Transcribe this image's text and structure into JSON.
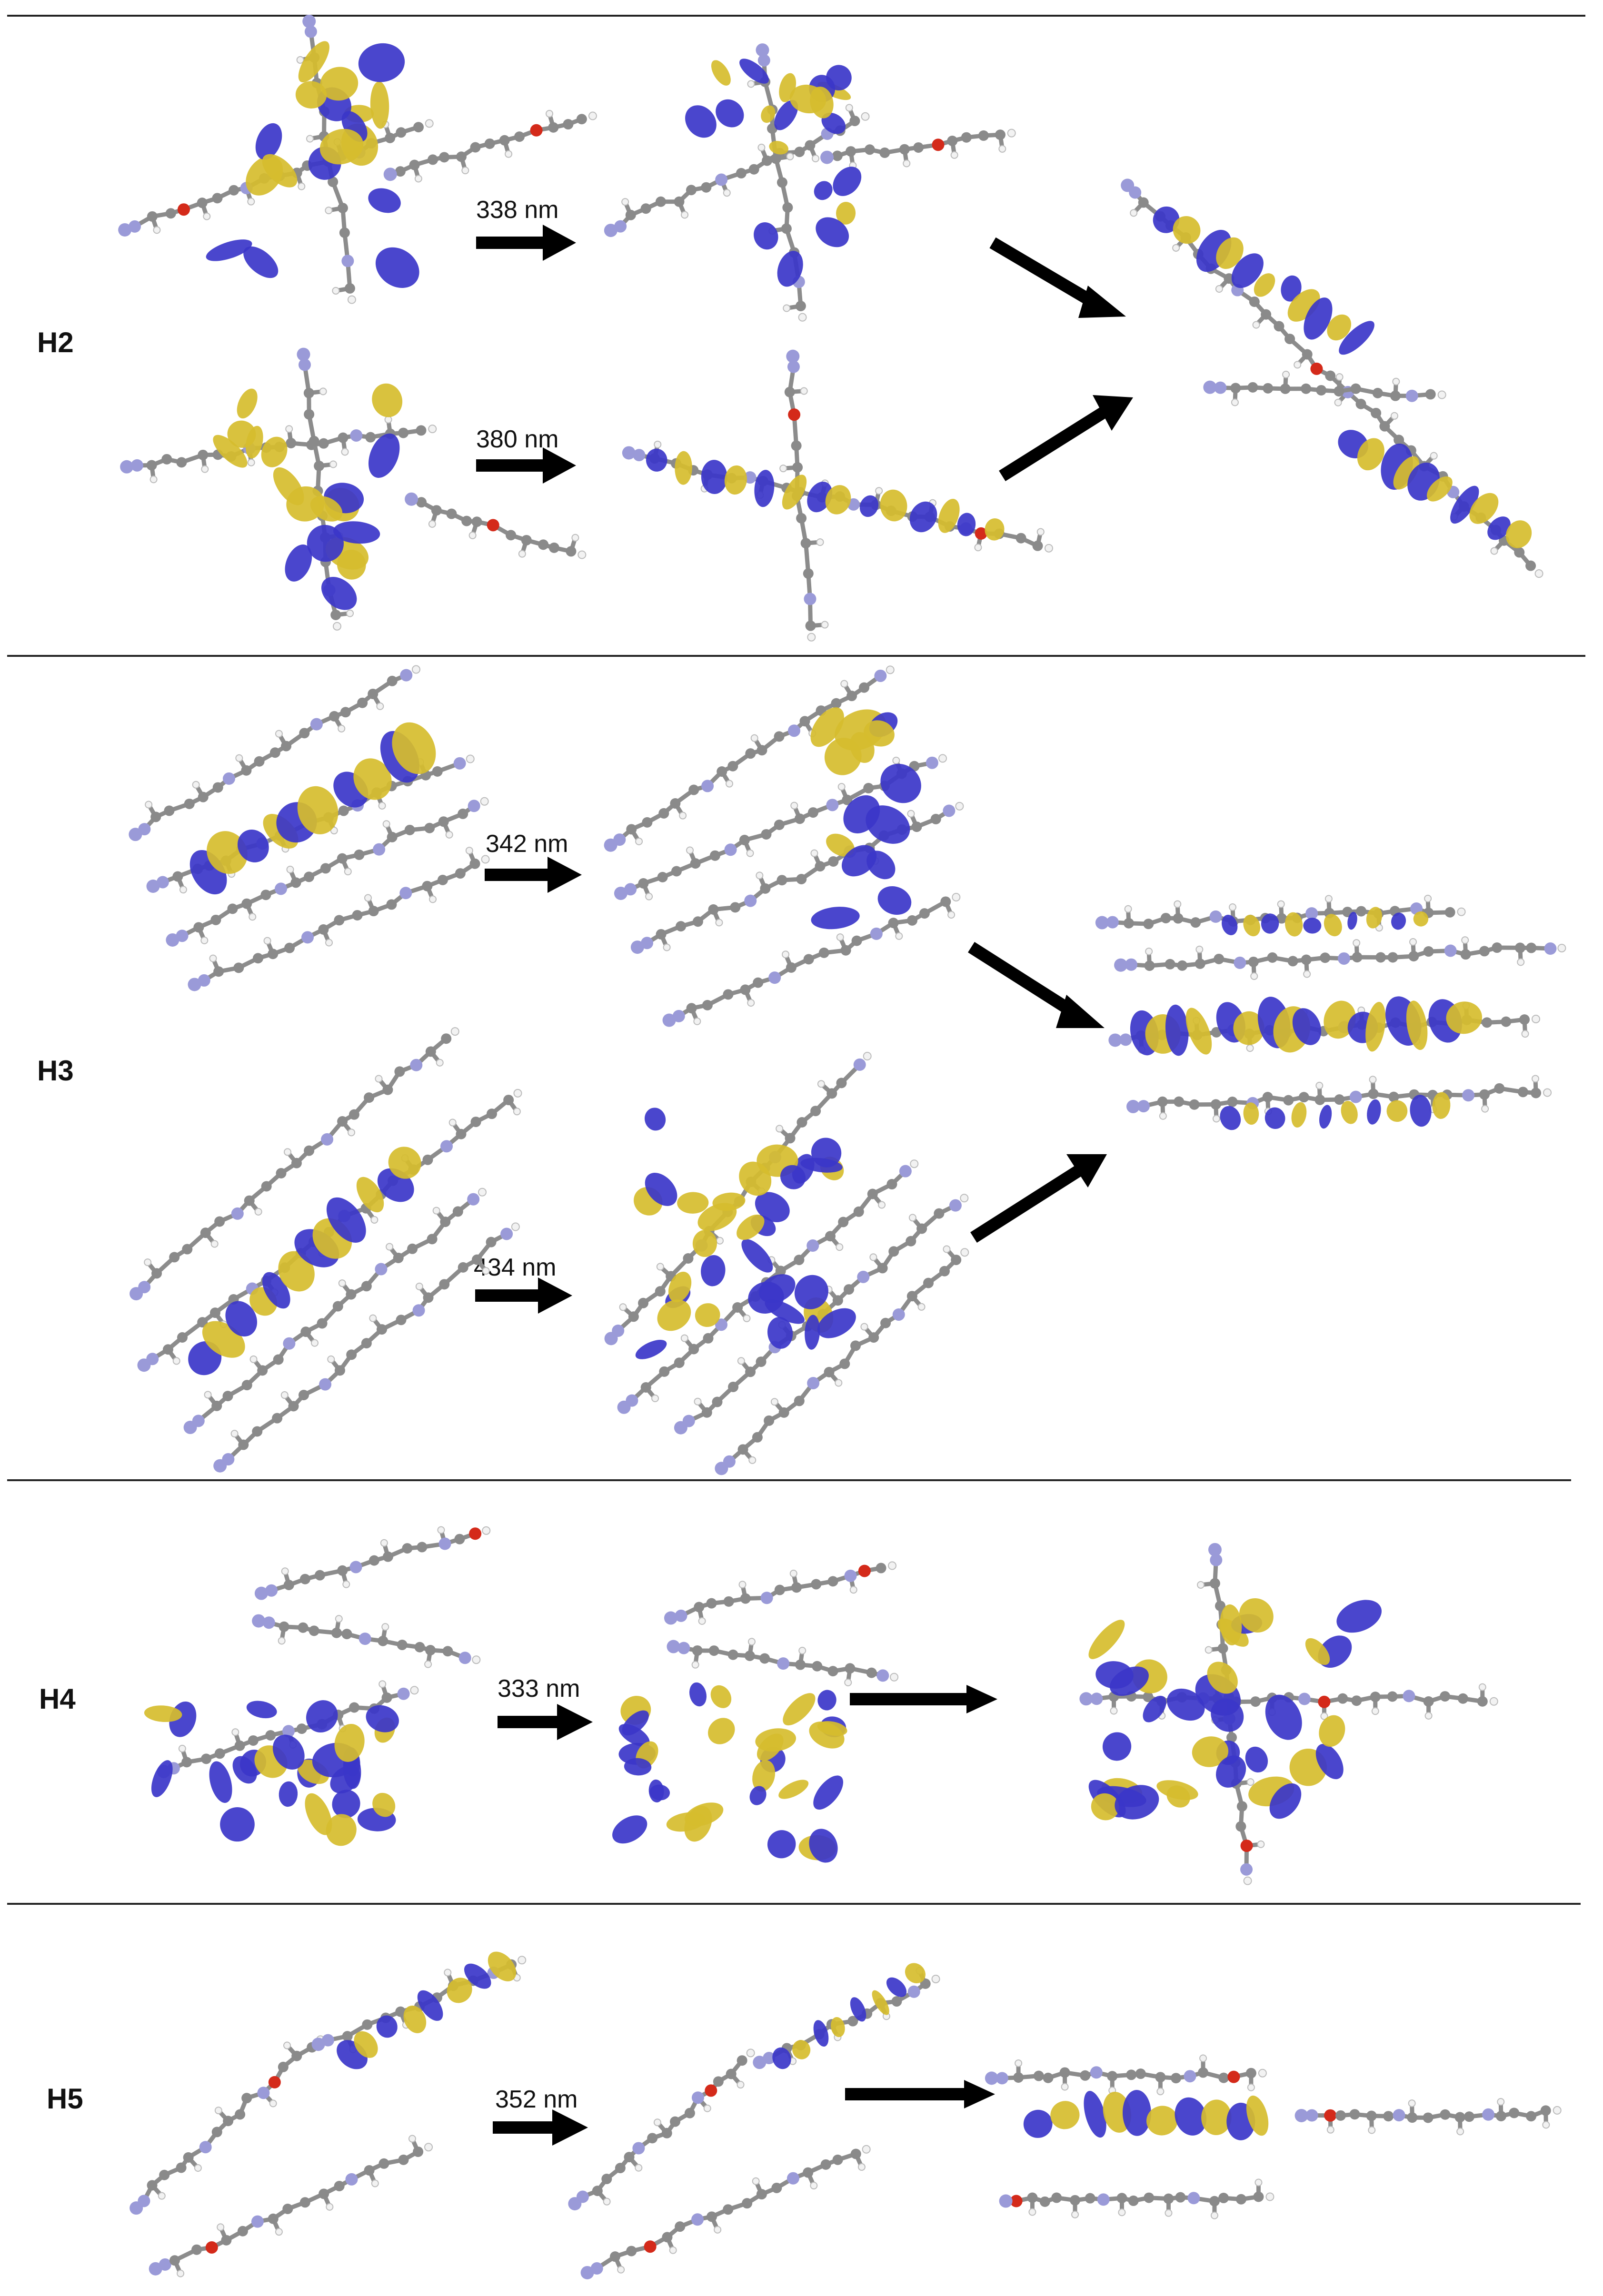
{
  "panels": [
    {
      "label": "H2",
      "transitions": [
        {
          "wavelength": "338 nm"
        },
        {
          "wavelength": "380 nm"
        }
      ]
    },
    {
      "label": "H3",
      "transitions": [
        {
          "wavelength": "342 nm"
        },
        {
          "wavelength": "434 nm"
        }
      ]
    },
    {
      "label": "H4",
      "transitions": [
        {
          "wavelength": "333 nm"
        }
      ]
    },
    {
      "label": "H5",
      "transitions": [
        {
          "wavelength": "352 nm"
        }
      ]
    }
  ],
  "colors": {
    "orbital_positive": "#3b36c9",
    "orbital_negative": "#d6bd2e",
    "carbon": "#8a8a8a",
    "hydrogen": "#f2f2f2",
    "nitrogen": "#9a9ad8",
    "oxygen": "#d42a1a"
  }
}
